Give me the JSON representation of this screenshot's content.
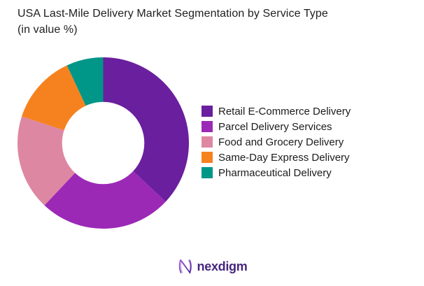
{
  "header": {
    "title_line1": "USA Last-Mile Delivery Market Segmentation by Service Type",
    "title_line2": "(in value %)"
  },
  "chart_data": {
    "type": "pie",
    "subtype": "donut",
    "title": "USA Last-Mile Delivery Market Segmentation by Service Type (in value %)",
    "categories": [
      "Retail E-Commerce Delivery",
      "Parcel Delivery Services",
      "Food and Grocery Delivery",
      "Same-Day Express Delivery",
      "Pharmaceutical Delivery"
    ],
    "values": [
      37,
      25,
      18,
      13,
      7
    ],
    "unit": "percent",
    "colors": [
      "#6a1f9e",
      "#9b29b6",
      "#de87a3",
      "#f6821f",
      "#009688"
    ],
    "start_angle_deg": 0,
    "direction": "clockwise",
    "donut_hole_ratio": 0.48,
    "legend_position": "right",
    "data_labels": false
  },
  "branding": {
    "logo_text": "nexdigm",
    "logo_color": "#46257e",
    "logo_gradient_start": "#9b4fd6",
    "logo_gradient_end": "#4a2398"
  }
}
